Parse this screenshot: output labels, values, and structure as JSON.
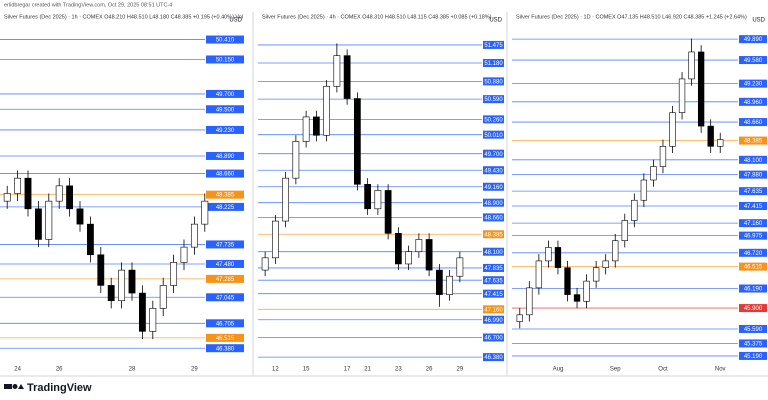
{
  "header": "erlidbregar created with TradingView.com, Oct 29, 2025 08:51 UTC-4",
  "footer": {
    "logo": "TradingView"
  },
  "chart_data": [
    {
      "type": "candlestick",
      "title": "Silver Futures (Dec 2025) · 1h · COMEX  O48.210 H48.510 L48.180 C48.385 +0.195 (+0.40%) Vol",
      "currency": "USD",
      "categories": [
        null,
        "24",
        null,
        null,
        null,
        "26",
        null,
        null,
        null,
        null,
        null,
        null,
        "28",
        null,
        null,
        null,
        null,
        null,
        "29",
        null
      ],
      "open": [
        48.3,
        48.4,
        48.6,
        48.2,
        47.8,
        48.3,
        48.5,
        48.2,
        48.0,
        47.6,
        47.2,
        47.0,
        47.4,
        47.1,
        46.6,
        46.9,
        47.2,
        47.5,
        47.7,
        48.0
      ],
      "high": [
        48.5,
        48.7,
        48.7,
        48.3,
        48.4,
        48.6,
        48.6,
        48.3,
        48.1,
        47.7,
        47.3,
        47.5,
        47.5,
        47.2,
        47.0,
        47.3,
        47.6,
        47.8,
        48.1,
        48.4
      ],
      "low": [
        48.2,
        48.3,
        48.1,
        47.7,
        47.7,
        48.2,
        48.1,
        47.9,
        47.5,
        47.1,
        46.9,
        46.9,
        47.0,
        46.5,
        46.5,
        46.8,
        47.1,
        47.4,
        47.6,
        47.9
      ],
      "close": [
        48.4,
        48.6,
        48.2,
        47.8,
        48.3,
        48.5,
        48.2,
        48.0,
        47.6,
        47.2,
        47.0,
        47.4,
        47.1,
        46.6,
        46.9,
        47.2,
        47.5,
        47.7,
        48.0,
        48.3
      ],
      "up_color": "#ffffff",
      "down_color": "#000000",
      "line_color": "#2962ff",
      "ylim": [
        46.2,
        50.6
      ],
      "yticks": [
        {
          "value": 50.41,
          "label": "50.410"
        },
        {
          "value": 50.15,
          "label": "50.150"
        },
        {
          "value": 49.7,
          "label": "49.700"
        },
        {
          "value": 49.5,
          "label": "49.500"
        },
        {
          "value": 49.23,
          "label": "49.230"
        },
        {
          "value": 48.89,
          "label": "48.890"
        },
        {
          "value": 48.66,
          "label": "48.660"
        },
        {
          "value": 48.385,
          "label": "48.385",
          "color": "#f7931a"
        },
        {
          "value": 48.225,
          "label": "48.225"
        },
        {
          "value": 47.735,
          "label": "47.735"
        },
        {
          "value": 47.48,
          "label": "47.480"
        },
        {
          "value": 47.285,
          "label": "47.285",
          "color": "#f7931a"
        },
        {
          "value": 47.045,
          "label": "47.045"
        },
        {
          "value": 46.705,
          "label": "46.705"
        },
        {
          "value": 46.515,
          "label": "46.515",
          "color": "#f7931a"
        },
        {
          "value": 46.38,
          "label": "46.380"
        }
      ]
    },
    {
      "type": "candlestick",
      "title": "Silver Futures (Dec 2025) · 4h · COMEX  O48.310 H48.510 L48.115 C48.385 +0.085 (+0.18%)",
      "currency": "USD",
      "categories": [
        null,
        "12",
        null,
        null,
        "15",
        null,
        null,
        null,
        "17",
        null,
        "21",
        null,
        null,
        "23",
        null,
        null,
        "26",
        null,
        null,
        "29"
      ],
      "open": [
        47.8,
        48.0,
        48.6,
        49.3,
        49.9,
        50.3,
        50.0,
        50.8,
        51.3,
        50.6,
        49.2,
        48.8,
        49.1,
        48.4,
        47.9,
        48.1,
        48.3,
        47.8,
        47.4,
        47.7
      ],
      "high": [
        48.1,
        48.7,
        49.4,
        50.0,
        50.4,
        50.4,
        50.9,
        51.5,
        51.4,
        50.7,
        49.3,
        49.2,
        49.2,
        48.5,
        48.2,
        48.4,
        48.4,
        47.9,
        47.8,
        48.1
      ],
      "low": [
        47.7,
        47.9,
        48.5,
        49.2,
        49.8,
        49.9,
        49.9,
        50.7,
        50.5,
        49.1,
        48.7,
        48.7,
        48.3,
        47.8,
        47.8,
        48.0,
        47.7,
        47.2,
        47.3,
        47.6
      ],
      "close": [
        48.0,
        48.6,
        49.3,
        49.9,
        50.3,
        50.0,
        50.8,
        51.3,
        50.6,
        49.2,
        48.8,
        49.1,
        48.4,
        47.9,
        48.1,
        48.3,
        47.8,
        47.4,
        47.7,
        48.0
      ],
      "up_color": "#ffffff",
      "down_color": "#000000",
      "line_color": "#2962ff",
      "ylim": [
        46.3,
        51.8
      ],
      "yticks": [
        {
          "value": 51.475,
          "label": "51.475"
        },
        {
          "value": 51.18,
          "label": "51.180"
        },
        {
          "value": 50.88,
          "label": "50.880"
        },
        {
          "value": 50.59,
          "label": "50.590"
        },
        {
          "value": 50.26,
          "label": "50.260"
        },
        {
          "value": 50.01,
          "label": "50.010"
        },
        {
          "value": 49.7,
          "label": "49.700"
        },
        {
          "value": 49.43,
          "label": "49.430"
        },
        {
          "value": 49.16,
          "label": "49.160"
        },
        {
          "value": 48.9,
          "label": "48.900"
        },
        {
          "value": 48.66,
          "label": "48.660"
        },
        {
          "value": 48.385,
          "label": "48.385",
          "color": "#f7931a"
        },
        {
          "value": 48.1,
          "label": "48.100"
        },
        {
          "value": 47.835,
          "label": "47.835"
        },
        {
          "value": 47.635,
          "label": "47.635"
        },
        {
          "value": 47.415,
          "label": "47.415"
        },
        {
          "value": 47.16,
          "label": "47.160",
          "color": "#f7931a"
        },
        {
          "value": 46.99,
          "label": "46.990"
        },
        {
          "value": 46.7,
          "label": "46.700"
        },
        {
          "value": 46.38,
          "label": "46.380"
        }
      ]
    },
    {
      "type": "candlestick",
      "title": "Silver Futures (Dec 2025) · 1D · COMEX  O47.135 H48.510 L46.920 C48.385 +1.245 (+2.64%)",
      "currency": "USD",
      "categories": [
        null,
        null,
        null,
        null,
        "Aug",
        null,
        null,
        null,
        null,
        null,
        "Sep",
        null,
        null,
        null,
        null,
        "Oct",
        null,
        null,
        null,
        null,
        null,
        "Nov"
      ],
      "open": [
        45.7,
        45.8,
        46.2,
        46.6,
        46.8,
        46.5,
        46.1,
        46.0,
        46.3,
        46.5,
        46.6,
        46.9,
        47.2,
        47.5,
        47.8,
        48.0,
        48.3,
        48.8,
        49.3,
        49.7,
        48.6,
        48.3
      ],
      "high": [
        45.9,
        46.3,
        46.7,
        46.9,
        46.9,
        46.6,
        46.2,
        46.4,
        46.6,
        46.7,
        47.0,
        47.3,
        47.6,
        47.9,
        48.1,
        48.4,
        48.9,
        49.4,
        49.9,
        49.8,
        48.7,
        48.5
      ],
      "low": [
        45.6,
        45.7,
        46.1,
        46.5,
        46.4,
        46.0,
        45.9,
        45.9,
        46.2,
        46.4,
        46.5,
        46.8,
        47.1,
        47.4,
        47.7,
        47.9,
        48.2,
        48.7,
        49.2,
        48.5,
        48.2,
        48.2
      ],
      "close": [
        45.8,
        46.2,
        46.6,
        46.8,
        46.5,
        46.1,
        46.0,
        46.3,
        46.5,
        46.6,
        46.9,
        47.2,
        47.5,
        47.8,
        48.0,
        48.3,
        48.8,
        49.3,
        49.7,
        48.6,
        48.3,
        48.4
      ],
      "up_color": "#ffffff",
      "down_color": "#000000",
      "line_color": "#2962ff",
      "ylim": [
        45.1,
        50.1
      ],
      "yticks": [
        {
          "value": 49.89,
          "label": "49.890"
        },
        {
          "value": 49.58,
          "label": "49.580"
        },
        {
          "value": 49.23,
          "label": "49.230"
        },
        {
          "value": 48.96,
          "label": "48.960"
        },
        {
          "value": 48.66,
          "label": "48.660"
        },
        {
          "value": 48.385,
          "label": "48.385",
          "color": "#f7931a"
        },
        {
          "value": 48.1,
          "label": "48.100"
        },
        {
          "value": 47.88,
          "label": "47.880"
        },
        {
          "value": 47.635,
          "label": "47.635"
        },
        {
          "value": 47.415,
          "label": "47.415"
        },
        {
          "value": 47.16,
          "label": "47.160"
        },
        {
          "value": 46.975,
          "label": "46.975"
        },
        {
          "value": 46.72,
          "label": "46.720"
        },
        {
          "value": 46.515,
          "label": "46.515",
          "color": "#f7931a"
        },
        {
          "value": 46.19,
          "label": "46.190"
        },
        {
          "value": 45.9,
          "label": "45.900",
          "color": "#e53935"
        },
        {
          "value": 45.59,
          "label": "45.590"
        },
        {
          "value": 45.375,
          "label": "45.375"
        },
        {
          "value": 45.19,
          "label": "45.190"
        }
      ]
    }
  ]
}
